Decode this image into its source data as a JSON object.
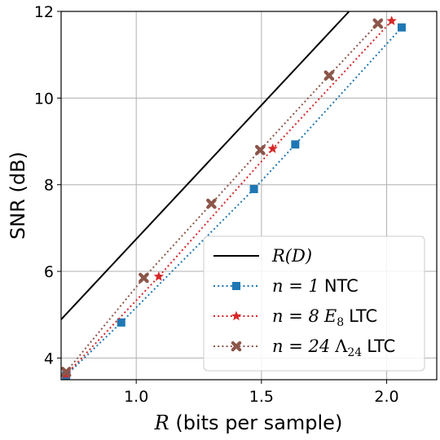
{
  "chart_data": {
    "type": "line",
    "xlabel": {
      "var": "R",
      "text": " (bits per sample)"
    },
    "ylabel": "SNR (dB)",
    "xlim": [
      0.7,
      2.2
    ],
    "ylim": [
      3.5,
      12
    ],
    "x_ticks": [
      1.0,
      1.5,
      2.0
    ],
    "x_tick_labels": [
      "1.0",
      "1.5",
      "2.0"
    ],
    "y_ticks": [
      4,
      6,
      8,
      10,
      12
    ],
    "y_tick_labels": [
      "4",
      "6",
      "8",
      "10",
      "12"
    ],
    "grid": true,
    "legend_position": "lower-right",
    "series": [
      {
        "key": "rd",
        "legend": {
          "var": "R(D)"
        },
        "color": "#000000",
        "style": "solid",
        "marker": "none",
        "x": [
          0.7,
          1.85
        ],
        "y": [
          4.89,
          12.0
        ]
      },
      {
        "key": "ntc",
        "legend": {
          "pre": "n = 1",
          "post": "NTC"
        },
        "color": "#1f77b4",
        "style": "dotted",
        "marker": "square",
        "x": [
          0.72,
          0.94,
          1.47,
          1.635,
          2.06
        ],
        "y": [
          3.6,
          4.82,
          7.9,
          8.93,
          11.63
        ]
      },
      {
        "key": "e8",
        "legend": {
          "pre": "n = 8",
          "sym": "E",
          "sub": "8",
          "post": "LTC"
        },
        "color": "#d62728",
        "style": "dotted",
        "marker": "star",
        "x": [
          0.72,
          1.09,
          1.545,
          2.02
        ],
        "y": [
          3.62,
          5.88,
          8.83,
          11.78
        ]
      },
      {
        "key": "l24",
        "legend": {
          "pre": "n = 24",
          "sym": "Λ",
          "sub": "24",
          "post": "LTC"
        },
        "color": "#8c564b",
        "style": "dotted",
        "marker": "x",
        "x": [
          0.72,
          1.03,
          1.3,
          1.495,
          1.77,
          1.965
        ],
        "y": [
          3.68,
          5.85,
          7.56,
          8.8,
          10.52,
          11.72
        ]
      }
    ]
  }
}
